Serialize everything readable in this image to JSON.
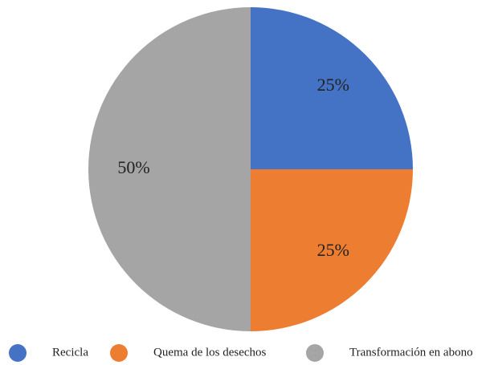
{
  "chart_data": {
    "type": "pie",
    "categories": [
      "Recicla",
      "Quema de los desechos",
      "Transformación en abono"
    ],
    "values": [
      25,
      25,
      50
    ],
    "value_labels": [
      "25%",
      "25%",
      "50%"
    ],
    "colors": [
      "#4472c4",
      "#ed7d31",
      "#a5a5a5"
    ],
    "legend": "bottom"
  }
}
